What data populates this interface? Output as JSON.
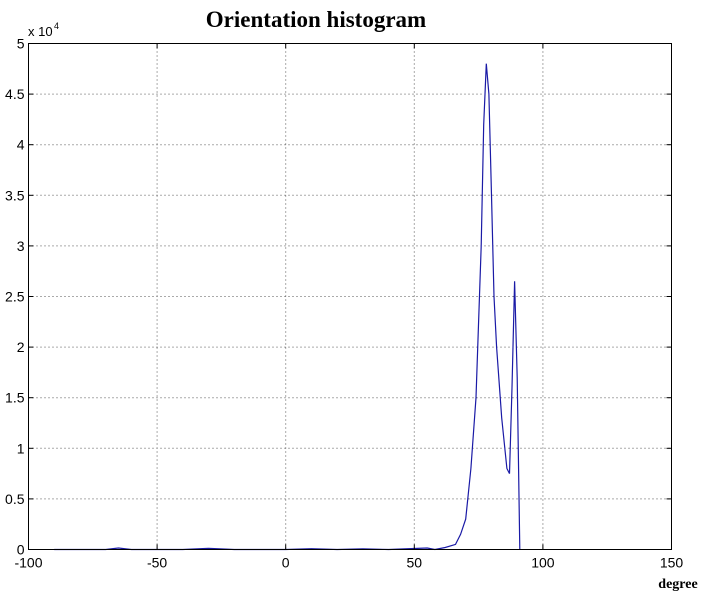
{
  "chart_data": {
    "type": "line",
    "title": "Orientation histogram",
    "xlabel": "degree",
    "ylabel": "",
    "xlim": [
      -100,
      150
    ],
    "ylim": [
      0,
      50000
    ],
    "y_multiplier": {
      "base": "x 10",
      "exponent": "4"
    },
    "grid": true,
    "xticks": [
      -100,
      -50,
      0,
      50,
      100,
      150
    ],
    "xtick_labels": [
      "-100",
      "-50",
      "0",
      "50",
      "100",
      "150"
    ],
    "yticks": [
      0,
      5000,
      10000,
      15000,
      20000,
      25000,
      30000,
      35000,
      40000,
      45000,
      50000
    ],
    "ytick_labels": [
      "0",
      "0.5",
      "1",
      "1.5",
      "2",
      "2.5",
      "3",
      "3.5",
      "4",
      "4.5",
      "5"
    ],
    "series": [
      {
        "color": "#1a1aa6",
        "x": [
          -90,
          -70,
          -65,
          -60,
          -40,
          -30,
          -20,
          0,
          10,
          20,
          30,
          40,
          50,
          55,
          58,
          62,
          66,
          68,
          70,
          72,
          74,
          76,
          77,
          78,
          79,
          80,
          81,
          82,
          84,
          86,
          87,
          88,
          89,
          90,
          91
        ],
        "y": [
          0,
          0,
          150,
          0,
          0,
          120,
          0,
          0,
          80,
          0,
          60,
          0,
          100,
          150,
          0,
          200,
          500,
          1500,
          3000,
          8000,
          15000,
          30000,
          42000,
          48000,
          45000,
          35000,
          25000,
          20000,
          13000,
          8000,
          7500,
          16000,
          26500,
          17000,
          0
        ]
      }
    ]
  }
}
